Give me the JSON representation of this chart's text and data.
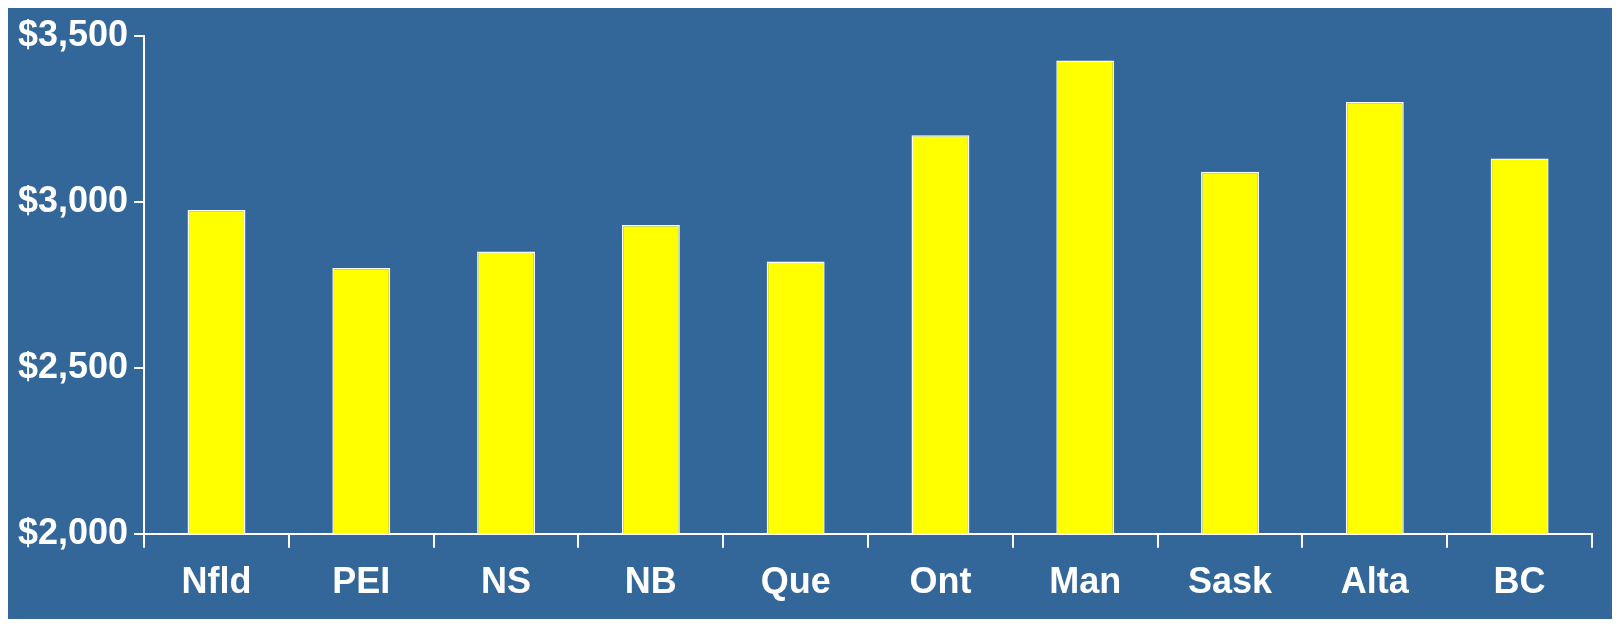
{
  "chart_data": {
    "type": "bar",
    "categories": [
      "Nfld",
      "PEI",
      "NS",
      "NB",
      "Que",
      "Ont",
      "Man",
      "Sask",
      "Alta",
      "BC"
    ],
    "values": [
      2975,
      2800,
      2850,
      2930,
      2820,
      3200,
      3425,
      3090,
      3300,
      3130
    ],
    "color": "#ffff00",
    "ylim": [
      2000,
      3500
    ],
    "yticks": [
      {
        "value": 2000,
        "label": "$2,000"
      },
      {
        "value": 2500,
        "label": "$2,500"
      },
      {
        "value": 3000,
        "label": "$3,000"
      },
      {
        "value": 3500,
        "label": "$3,500"
      }
    ],
    "grid": false,
    "legend": false
  }
}
